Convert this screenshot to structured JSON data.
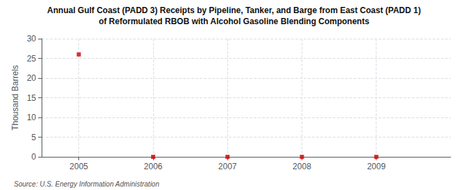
{
  "chart_data": {
    "type": "scatter",
    "title": "Annual Gulf Coast (PADD 3) Receipts by Pipeline, Tanker, and Barge from East Coast (PADD 1)",
    "subtitle": "of Reformulated RBOB with Alcohol Gasoline Blending Components",
    "ylabel": "Thousand Barrels",
    "source": "Source: U.S. Energy Information Administration",
    "x": [
      2005,
      2006,
      2007,
      2008,
      2009
    ],
    "values": [
      26,
      0,
      0,
      0,
      0
    ],
    "color": "#cc0000",
    "marker": "square",
    "xlim": [
      2004.5,
      2010.0
    ],
    "xticks": [
      2005,
      2006,
      2007,
      2008,
      2009
    ],
    "ylim": [
      0,
      30
    ],
    "yticks": [
      0,
      5,
      10,
      15,
      20,
      25,
      30
    ],
    "grid": true
  }
}
